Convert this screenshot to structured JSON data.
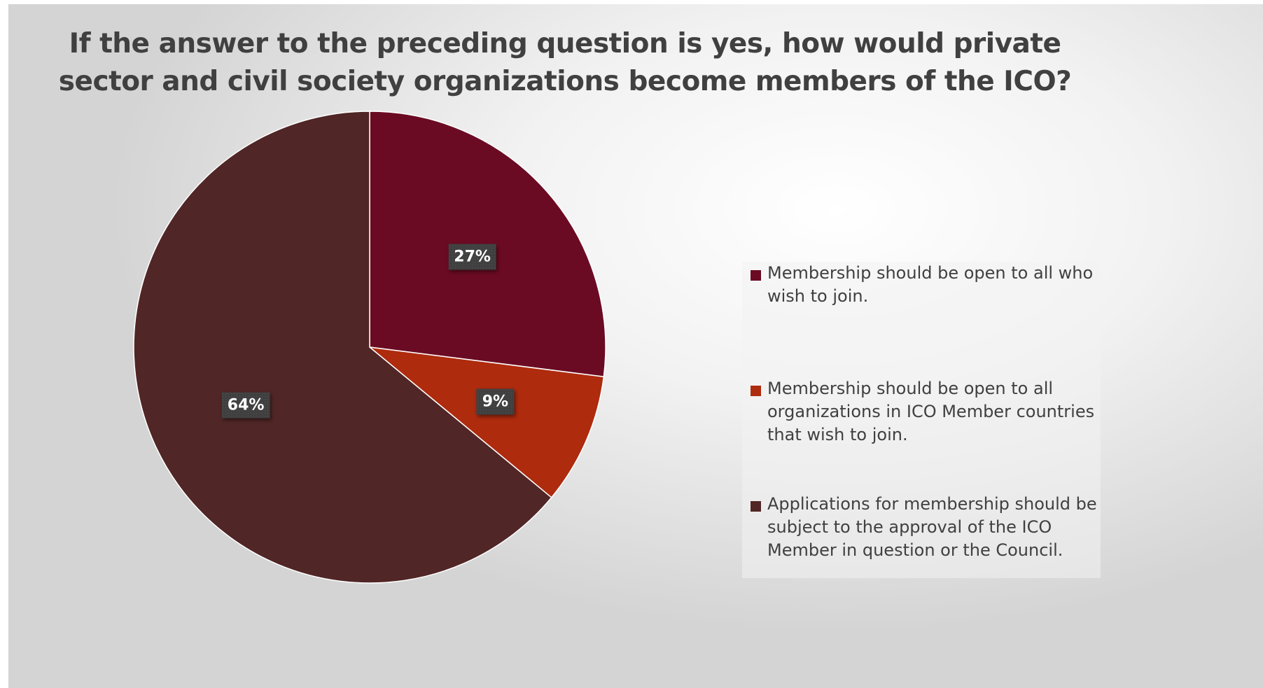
{
  "chart_data": {
    "type": "pie",
    "title": "If the answer to the preceding question is yes, how would private sector and civil society organizations become members of the ICO?",
    "title_lines": [
      "If the answer to the preceding question is yes, how would private",
      "sector and civil society organizations become members of the ICO?"
    ],
    "slices": [
      {
        "label": "Membership should be open to all who wish to join.",
        "value": 27,
        "display": "27%",
        "color": "#6b0b23"
      },
      {
        "label": "Membership should be open to all organizations in ICO Member countries that wish to join.",
        "value": 9,
        "display": "9%",
        "color": "#ae2b0e"
      },
      {
        "label": "Applications for membership should be subject to the approval of the ICO Member in question or the Council.",
        "value": 64,
        "display": "64%",
        "color": "#512626"
      }
    ],
    "start_angle": "12 o'clock",
    "direction": "clockwise",
    "legend_position": "right"
  }
}
